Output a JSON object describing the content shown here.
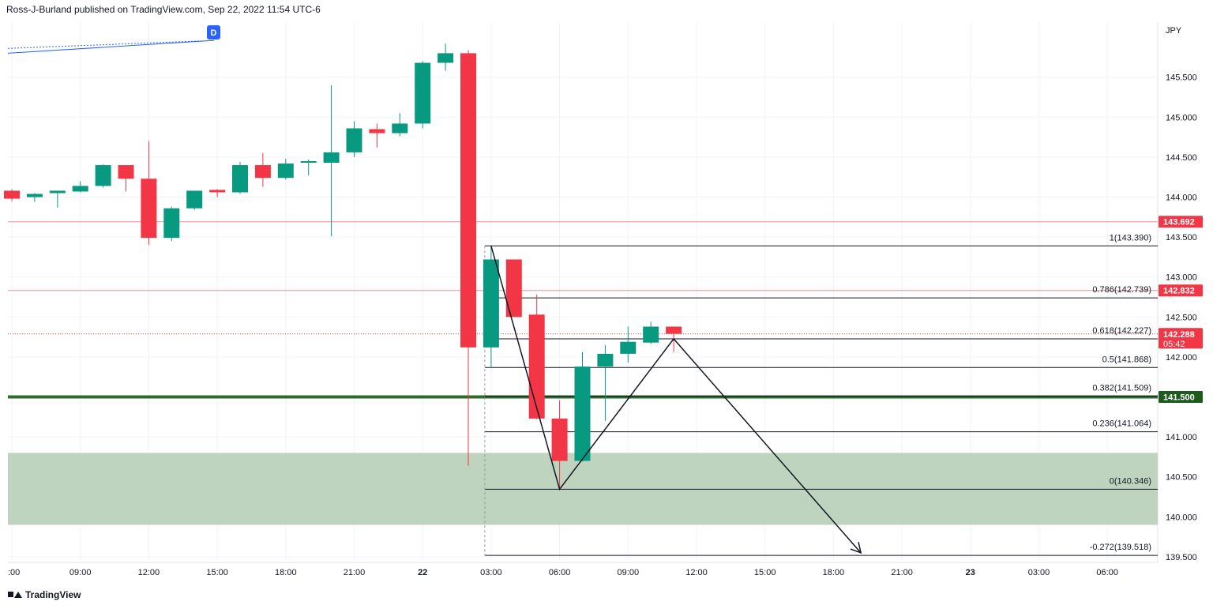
{
  "header": {
    "publisher_line": "Ross-J-Burland published on TradingView.com, Sep 22, 2022 11:54 UTC-6"
  },
  "footer": {
    "brand": "TradingView"
  },
  "drawing_marker": {
    "label": "D"
  },
  "colors": {
    "up": "#089981",
    "down": "#f23645",
    "zone": "#bcd2bc",
    "support": "#2e6b2e",
    "grid": "#f0f3fa"
  },
  "chart_data": {
    "type": "candlestick",
    "currency_label": "JPY",
    "ylim": [
      139.45,
      146.2
    ],
    "y_ticks": [
      "139.500",
      "140.000",
      "140.500",
      "141.000",
      "141.500",
      "142.000",
      "142.500",
      "143.000",
      "143.500",
      "144.000",
      "144.500",
      "145.000",
      "145.500"
    ],
    "x_ticks": [
      {
        "label": ":00",
        "t": 0
      },
      {
        "label": "09:00",
        "t": 3
      },
      {
        "label": "12:00",
        "t": 6
      },
      {
        "label": "15:00",
        "t": 9
      },
      {
        "label": "18:00",
        "t": 12
      },
      {
        "label": "21:00",
        "t": 15
      },
      {
        "label": "22",
        "t": 18
      },
      {
        "label": "03:00",
        "t": 21
      },
      {
        "label": "06:00",
        "t": 24
      },
      {
        "label": "09:00",
        "t": 27
      },
      {
        "label": "12:00",
        "t": 30
      },
      {
        "label": "15:00",
        "t": 33
      },
      {
        "label": "18:00",
        "t": 36
      },
      {
        "label": "21:00",
        "t": 39
      },
      {
        "label": "23",
        "t": 42
      },
      {
        "label": "03:00",
        "t": 45
      },
      {
        "label": "06:00",
        "t": 48
      }
    ],
    "candles": [
      {
        "t": 0,
        "o": 144.08,
        "h": 144.1,
        "l": 143.95,
        "c": 143.98
      },
      {
        "t": 1,
        "o": 144.0,
        "h": 144.05,
        "l": 143.94,
        "c": 144.04
      },
      {
        "t": 2,
        "o": 144.05,
        "h": 144.08,
        "l": 143.87,
        "c": 144.08
      },
      {
        "t": 3,
        "o": 144.07,
        "h": 144.2,
        "l": 144.06,
        "c": 144.14
      },
      {
        "t": 4,
        "o": 144.14,
        "h": 144.41,
        "l": 144.12,
        "c": 144.4
      },
      {
        "t": 5,
        "o": 144.4,
        "h": 144.4,
        "l": 144.07,
        "c": 144.23
      },
      {
        "t": 6,
        "o": 144.23,
        "h": 144.7,
        "l": 143.4,
        "c": 143.49
      },
      {
        "t": 7,
        "o": 143.49,
        "h": 143.88,
        "l": 143.45,
        "c": 143.86
      },
      {
        "t": 8,
        "o": 143.86,
        "h": 144.08,
        "l": 143.84,
        "c": 144.08
      },
      {
        "t": 9,
        "o": 144.09,
        "h": 144.1,
        "l": 144.0,
        "c": 144.06
      },
      {
        "t": 10,
        "o": 144.06,
        "h": 144.44,
        "l": 144.04,
        "c": 144.4
      },
      {
        "t": 11,
        "o": 144.4,
        "h": 144.55,
        "l": 144.13,
        "c": 144.24
      },
      {
        "t": 12,
        "o": 144.24,
        "h": 144.48,
        "l": 144.22,
        "c": 144.42
      },
      {
        "t": 13,
        "o": 144.44,
        "h": 144.47,
        "l": 144.27,
        "c": 144.45
      },
      {
        "t": 14,
        "o": 144.43,
        "h": 145.4,
        "l": 143.51,
        "c": 144.56
      },
      {
        "t": 15,
        "o": 144.56,
        "h": 144.95,
        "l": 144.5,
        "c": 144.86
      },
      {
        "t": 16,
        "o": 144.85,
        "h": 144.92,
        "l": 144.62,
        "c": 144.8
      },
      {
        "t": 17,
        "o": 144.8,
        "h": 145.05,
        "l": 144.76,
        "c": 144.92
      },
      {
        "t": 18,
        "o": 144.92,
        "h": 145.7,
        "l": 144.86,
        "c": 145.68
      },
      {
        "t": 19,
        "o": 145.68,
        "h": 145.92,
        "l": 145.58,
        "c": 145.8
      },
      {
        "t": 20,
        "o": 145.8,
        "h": 145.84,
        "l": 140.64,
        "c": 142.12
      },
      {
        "t": 21,
        "o": 142.12,
        "h": 143.39,
        "l": 141.86,
        "c": 143.22
      },
      {
        "t": 22,
        "o": 143.22,
        "h": 143.22,
        "l": 142.5,
        "c": 142.5
      },
      {
        "t": 23,
        "o": 142.53,
        "h": 142.78,
        "l": 141.22,
        "c": 141.23
      },
      {
        "t": 24,
        "o": 141.23,
        "h": 141.46,
        "l": 140.35,
        "c": 140.7
      },
      {
        "t": 25,
        "o": 140.7,
        "h": 142.06,
        "l": 140.69,
        "c": 141.88
      },
      {
        "t": 26,
        "o": 141.88,
        "h": 142.15,
        "l": 141.2,
        "c": 142.04
      },
      {
        "t": 27,
        "o": 142.04,
        "h": 142.38,
        "l": 141.93,
        "c": 142.19
      },
      {
        "t": 28,
        "o": 142.18,
        "h": 142.44,
        "l": 142.16,
        "c": 142.38
      },
      {
        "t": 29,
        "o": 142.38,
        "h": 142.38,
        "l": 142.06,
        "c": 142.29
      }
    ],
    "fib_levels": [
      {
        "label": "1(143.390)",
        "value": 143.39
      },
      {
        "label": "0.786(142.739)",
        "value": 142.739
      },
      {
        "label": "0.618(142.227)",
        "value": 142.227
      },
      {
        "label": "0.5(141.868)",
        "value": 141.868
      },
      {
        "label": "0.382(141.509)",
        "value": 141.509
      },
      {
        "label": "0.236(141.064)",
        "value": 141.064
      },
      {
        "label": "0(140.346)",
        "value": 140.346
      },
      {
        "label": "-0.272(139.518)",
        "value": 139.518
      }
    ],
    "fib_start_t": 21,
    "horizontal_lines": [
      {
        "value": 143.692,
        "label": "143.692",
        "style": "red-thin"
      },
      {
        "value": 142.832,
        "label": "142.832",
        "style": "red-thin"
      },
      {
        "value": 142.288,
        "label": "142.288",
        "sublabel": "05:42",
        "style": "red-dotted"
      },
      {
        "value": 141.5,
        "label": "141.500",
        "style": "green-thick"
      }
    ],
    "zone": {
      "from": 139.9,
      "to": 140.8
    },
    "projection_path": [
      {
        "t": 21,
        "v": 143.39
      },
      {
        "t": 24,
        "v": 140.346
      },
      {
        "t": 29,
        "v": 142.227
      },
      {
        "t": 37.2,
        "v": 139.55
      }
    ],
    "trend_lines_top_left": [
      {
        "from": {
          "t": 0,
          "v": 145.86
        },
        "to": {
          "t": 9,
          "v": 145.96
        }
      },
      {
        "from": {
          "t": 0,
          "v": 145.8
        },
        "to": {
          "t": 9,
          "v": 145.96
        }
      }
    ]
  }
}
